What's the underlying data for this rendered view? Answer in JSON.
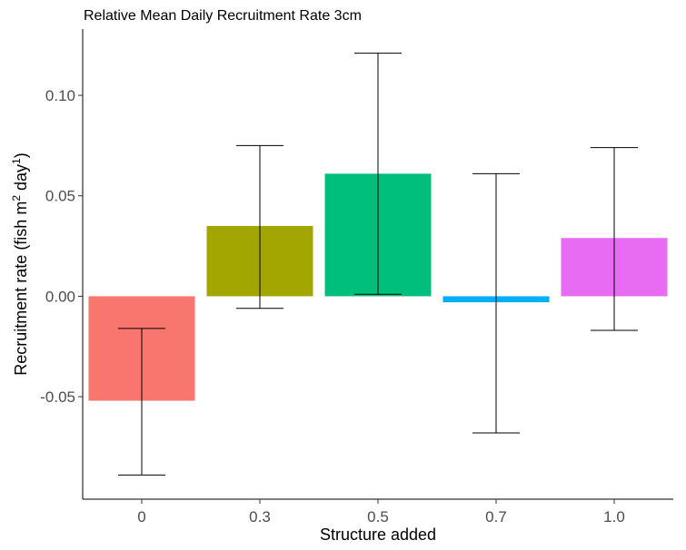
{
  "chart_data": {
    "type": "bar",
    "title": "Relative Mean Daily Recruitment Rate 3cm",
    "xlabel": "Structure added",
    "ylabel": {
      "main": "Recruitment rate (fish m",
      "sup1": "2",
      "mid": " day",
      "sup2": "1",
      "end": ")"
    },
    "categories": [
      "0",
      "0.3",
      "0.5",
      "0.7",
      "1.0"
    ],
    "values": [
      -0.052,
      0.035,
      0.061,
      -0.003,
      0.029
    ],
    "error_low": [
      -0.089,
      -0.006,
      0.001,
      -0.068,
      -0.017
    ],
    "error_high": [
      -0.016,
      0.075,
      0.121,
      0.061,
      0.074
    ],
    "colors": [
      "#F8766D",
      "#A3A500",
      "#00BF7D",
      "#00B0F6",
      "#E76BF3"
    ],
    "yticks": [
      -0.05,
      0.0,
      0.05,
      0.1
    ],
    "ytick_labels": [
      "-0.05",
      "0.00",
      "0.05",
      "0.10"
    ],
    "ylim": [
      -0.101,
      0.133
    ],
    "grid": false,
    "legend": "none"
  }
}
